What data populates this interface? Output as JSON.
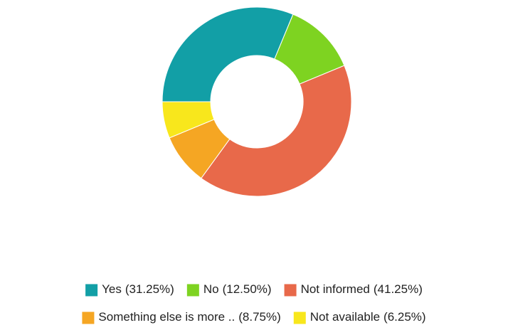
{
  "chart_data": {
    "type": "donut",
    "categories": [
      "Yes",
      "No",
      "Not informed",
      "Something else is more ..",
      "Not available"
    ],
    "values": [
      31.25,
      12.5,
      41.25,
      8.75,
      6.25
    ],
    "value_labels": [
      "(31.25%)",
      "(12.50%)",
      "(41.25%)",
      "(8.75%)",
      "(6.25%)"
    ],
    "colors": [
      "#129fa6",
      "#7ed321",
      "#e8694a",
      "#f5a623",
      "#f8e71c"
    ]
  }
}
